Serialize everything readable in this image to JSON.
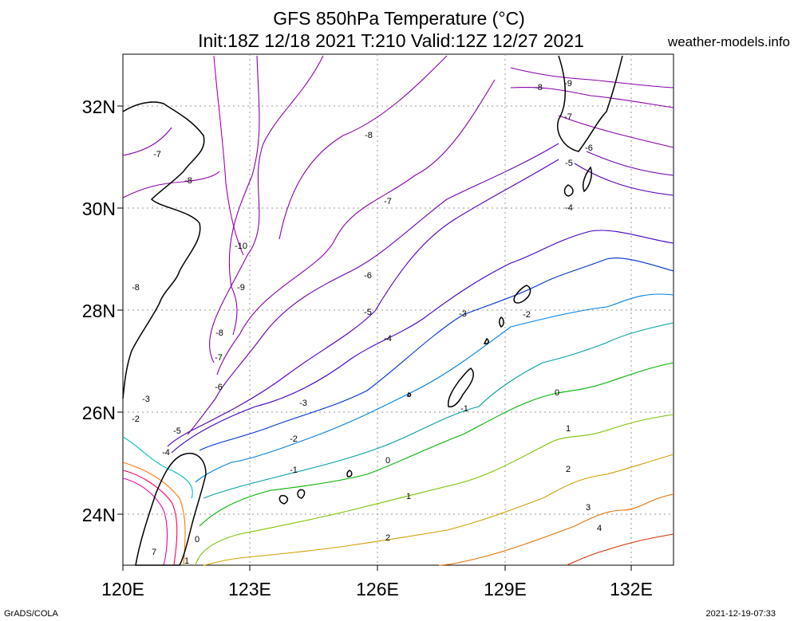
{
  "header": {
    "title": "GFS 850hPa Temperature (°C)",
    "subtitle": "Init:18Z 12/18 2021 T:210 Valid:12Z 12/27 2021",
    "brand": "weather-models.info"
  },
  "footer": {
    "left": "GrADS/COLA",
    "right": "2021-12-19-07:33"
  },
  "map": {
    "lon_labels": [
      "120E",
      "123E",
      "126E",
      "129E",
      "132E"
    ],
    "lat_labels": [
      "32N",
      "30N",
      "28N",
      "26N",
      "24N"
    ],
    "contour_labels": [
      {
        "text": "-9",
        "color": "#8800aa"
      },
      {
        "text": "-8",
        "color": "#8800aa"
      },
      {
        "text": "-7",
        "color": "#8800aa"
      },
      {
        "text": "-6",
        "color": "#6a00aa"
      },
      {
        "text": "-5",
        "color": "#5500b8"
      },
      {
        "text": "-4",
        "color": "#4000c0"
      },
      {
        "text": "-3",
        "color": "#0030d0"
      },
      {
        "text": "-2",
        "color": "#0080e0"
      },
      {
        "text": "-1",
        "color": "#00a0a0"
      },
      {
        "text": "0",
        "color": "#00b000"
      },
      {
        "text": "1",
        "color": "#80c000"
      },
      {
        "text": "2",
        "color": "#d0a000"
      },
      {
        "text": "3",
        "color": "#e07000"
      },
      {
        "text": "4",
        "color": "#d03000"
      },
      {
        "text": "-10",
        "color": "#aa00aa"
      },
      {
        "text": "7",
        "color": "#cc0080"
      }
    ]
  }
}
